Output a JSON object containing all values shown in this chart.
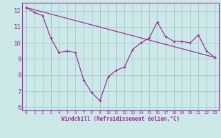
{
  "x": [
    0,
    1,
    2,
    3,
    4,
    5,
    6,
    7,
    8,
    9,
    10,
    11,
    12,
    13,
    14,
    15,
    16,
    17,
    18,
    19,
    20,
    21,
    22,
    23
  ],
  "line1": [
    12.2,
    11.9,
    11.7,
    10.3,
    9.4,
    9.5,
    9.4,
    7.7,
    6.9,
    6.4,
    7.9,
    8.3,
    8.5,
    9.6,
    10.0,
    10.3,
    11.3,
    10.4,
    10.1,
    10.1,
    10.0,
    10.5,
    9.5,
    9.1
  ],
  "line2_x": [
    0,
    23
  ],
  "line2_y": [
    12.2,
    9.1
  ],
  "line_color": "#993399",
  "bg_color": "#cce8e8",
  "grid_color": "#aacccc",
  "xlabel": "Windchill (Refroidissement éolien,°C)",
  "xlim": [
    -0.5,
    23.5
  ],
  "ylim": [
    5.8,
    12.5
  ],
  "yticks": [
    6,
    7,
    8,
    9,
    10,
    11,
    12
  ],
  "xticks": [
    0,
    1,
    2,
    3,
    4,
    5,
    6,
    7,
    8,
    9,
    10,
    11,
    12,
    13,
    14,
    15,
    16,
    17,
    18,
    19,
    20,
    21,
    22,
    23
  ]
}
